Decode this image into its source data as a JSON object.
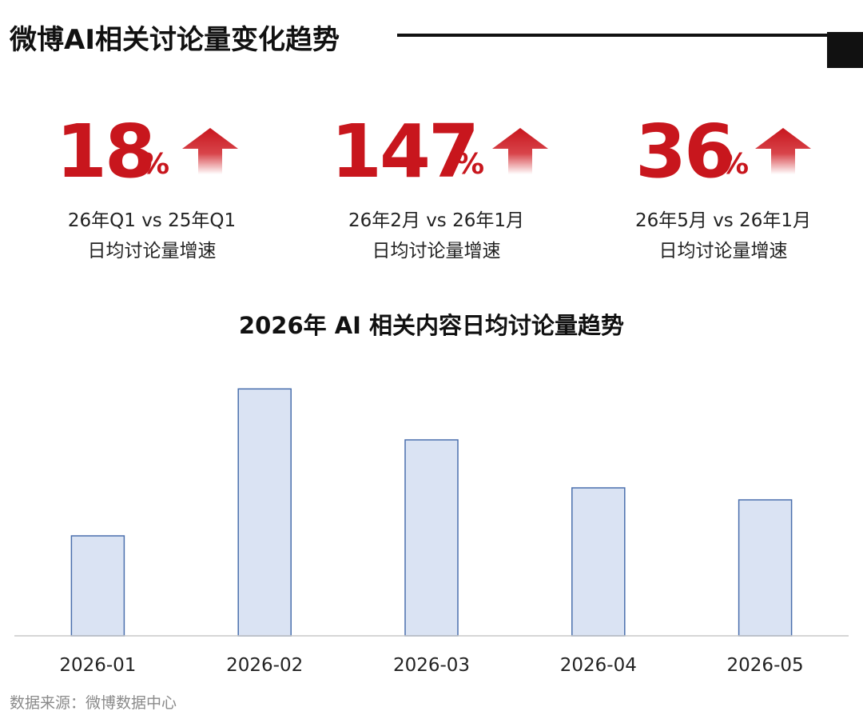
{
  "header": {
    "title": "微博AI相关讨论量变化趋势"
  },
  "kpis": [
    {
      "number": "18",
      "unit": "%",
      "comparison": "26年Q1 vs 25年Q1",
      "metric": "日均讨论量增速",
      "trend_icon": "arrow-up-icon"
    },
    {
      "number": "147",
      "unit": "%",
      "comparison": "26年2月 vs 26年1月",
      "metric": "日均讨论量增速",
      "trend_icon": "arrow-up-icon"
    },
    {
      "number": "36",
      "unit": "%",
      "comparison": "26年5月 vs 26年1月",
      "metric": "日均讨论量增速",
      "trend_icon": "arrow-up-icon"
    }
  ],
  "colors": {
    "accent_red": "#c8161d",
    "bar_fill": "#dae3f3",
    "bar_stroke": "#4a6fad",
    "axis": "#c8c8c8"
  },
  "chart_data": {
    "type": "bar",
    "title": "2026年 AI 相关内容日均讨论量趋势",
    "xlabel": "",
    "ylabel": "",
    "categories": [
      "2026-01",
      "2026-02",
      "2026-03",
      "2026-04",
      "2026-05"
    ],
    "values": [
      100,
      247,
      196,
      148,
      136
    ],
    "ylim": [
      0,
      260
    ],
    "grid": false,
    "legend": "none"
  },
  "footer": {
    "source": "数据来源：微博数据中心"
  }
}
